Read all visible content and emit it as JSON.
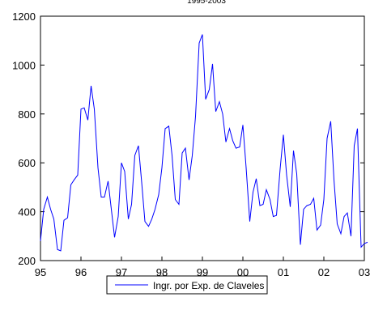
{
  "chart_data": {
    "type": "line",
    "title": "",
    "subtitle": "1995-2003",
    "xlabel": "",
    "ylabel": "",
    "x_ticks": [
      "95",
      "96",
      "97",
      "98",
      "99",
      "00",
      "01",
      "02",
      "03"
    ],
    "x_range": [
      1995.0,
      2003.0
    ],
    "ylim": [
      200,
      1200
    ],
    "y_ticks": [
      "200",
      "400",
      "600",
      "800",
      "1000",
      "1200"
    ],
    "y_tick_values": [
      200,
      400,
      600,
      800,
      1000,
      1200
    ],
    "grid": false,
    "legend_position": "bottom-center",
    "series": [
      {
        "name": "Ingr. por Exp. de Claveles",
        "color": "#0000ff",
        "x": [
          1995.0,
          1995.08,
          1995.17,
          1995.25,
          1995.33,
          1995.42,
          1995.5,
          1995.58,
          1995.67,
          1995.75,
          1995.83,
          1995.92,
          1996.0,
          1996.08,
          1996.17,
          1996.25,
          1996.33,
          1996.42,
          1996.5,
          1996.58,
          1996.67,
          1996.75,
          1996.83,
          1996.92,
          1997.0,
          1997.08,
          1997.17,
          1997.25,
          1997.33,
          1997.42,
          1997.5,
          1997.58,
          1997.67,
          1997.75,
          1997.83,
          1997.92,
          1998.0,
          1998.08,
          1998.17,
          1998.25,
          1998.33,
          1998.42,
          1998.5,
          1998.58,
          1998.67,
          1998.75,
          1998.83,
          1998.92,
          1999.0,
          1999.08,
          1999.17,
          1999.25,
          1999.33,
          1999.42,
          1999.5,
          1999.58,
          1999.67,
          1999.75,
          1999.83,
          1999.92,
          2000.0,
          2000.08,
          2000.17,
          2000.25,
          2000.33,
          2000.42,
          2000.5,
          2000.58,
          2000.67,
          2000.75,
          2000.83,
          2000.92,
          2001.0,
          2001.08,
          2001.17,
          2001.25,
          2001.33,
          2001.42,
          2001.5,
          2001.58,
          2001.67,
          2001.75,
          2001.83,
          2001.92,
          2002.0,
          2002.08,
          2002.17,
          2002.25,
          2002.33,
          2002.42,
          2002.5,
          2002.58,
          2002.67,
          2002.75,
          2002.83,
          2002.92,
          2003.0,
          2003.08
        ],
        "values": [
          280,
          410,
          460,
          410,
          370,
          245,
          240,
          365,
          375,
          510,
          530,
          550,
          820,
          825,
          775,
          915,
          820,
          580,
          460,
          460,
          525,
          410,
          295,
          380,
          600,
          565,
          370,
          430,
          630,
          670,
          520,
          360,
          340,
          370,
          410,
          470,
          580,
          740,
          750,
          630,
          450,
          430,
          640,
          660,
          530,
          630,
          790,
          1090,
          1125,
          860,
          900,
          1005,
          810,
          850,
          800,
          685,
          740,
          690,
          660,
          665,
          755,
          580,
          360,
          480,
          535,
          425,
          430,
          490,
          450,
          380,
          385,
          575,
          715,
          550,
          420,
          650,
          555,
          265,
          410,
          425,
          430,
          455,
          325,
          345,
          450,
          700,
          770,
          530,
          350,
          310,
          380,
          395,
          300,
          670,
          740,
          255,
          270,
          275
        ]
      }
    ]
  }
}
